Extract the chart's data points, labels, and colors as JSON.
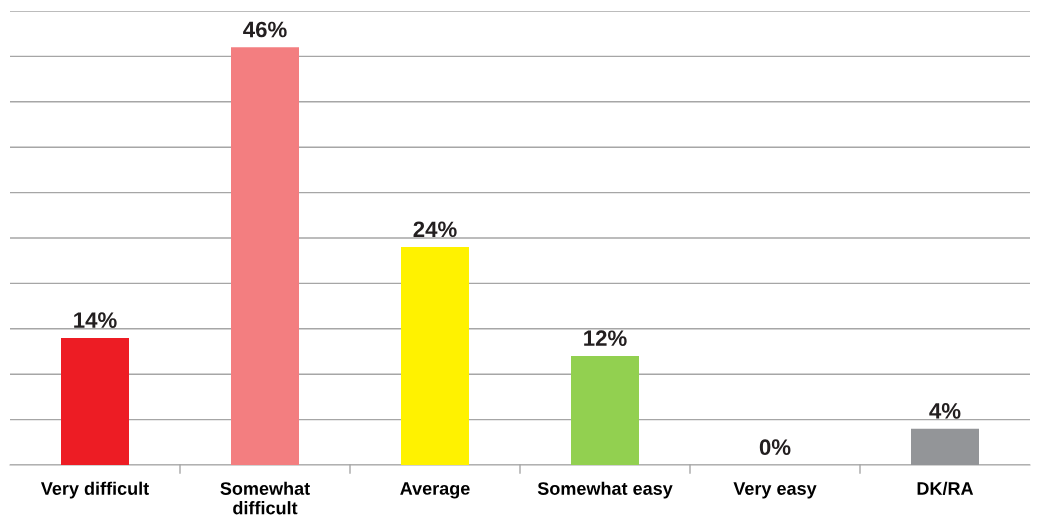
{
  "chart_data": {
    "type": "bar",
    "categories": [
      "Very difficult",
      "Somewhat\ndifficult",
      "Average",
      "Somewhat easy",
      "Very easy",
      "DK/RA"
    ],
    "values": [
      14,
      46,
      24,
      12,
      0,
      4
    ],
    "colors": [
      "#ed1c24",
      "#f37e80",
      "#fff200",
      "#92d050",
      "#92d050",
      "#939598"
    ],
    "value_labels": [
      "14%",
      "46%",
      "24%",
      "12%",
      "0%",
      "4%"
    ],
    "ylim": [
      0,
      50
    ],
    "yticks": [
      {
        "value": 0,
        "label": null
      },
      {
        "value": 5,
        "label": null
      },
      {
        "value": 10,
        "label": null
      },
      {
        "value": 15,
        "label": null
      },
      {
        "value": 20,
        "label": null
      },
      {
        "value": 25,
        "label": null
      },
      {
        "value": 30,
        "label": null
      },
      {
        "value": 35,
        "label": null
      },
      {
        "value": 40,
        "label": null
      },
      {
        "value": 45,
        "label": null
      },
      {
        "value": 50,
        "label": null
      }
    ],
    "grid": "y",
    "tick_labels": "x",
    "legend": false
  }
}
